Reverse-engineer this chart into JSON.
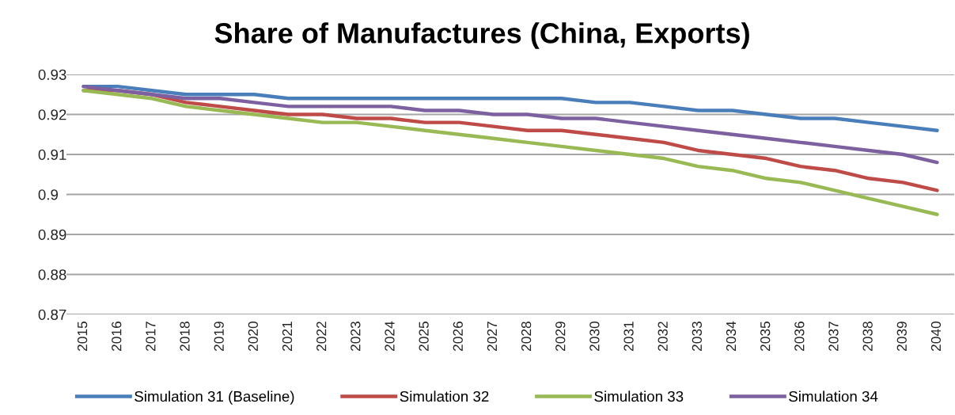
{
  "chart_data": {
    "type": "line",
    "title": "Share of Manufactures (China, Exports)",
    "categories": [
      "2015",
      "2016",
      "2017",
      "2018",
      "2019",
      "2020",
      "2021",
      "2022",
      "2023",
      "2024",
      "2025",
      "2026",
      "2027",
      "2028",
      "2029",
      "2030",
      "2031",
      "2032",
      "2033",
      "2034",
      "2035",
      "2036",
      "2037",
      "2038",
      "2039",
      "2040"
    ],
    "series": [
      {
        "name": "Simulation 31 (Baseline)",
        "color": "#4a7ebb",
        "values": [
          0.927,
          0.927,
          0.926,
          0.925,
          0.925,
          0.925,
          0.924,
          0.924,
          0.924,
          0.924,
          0.924,
          0.924,
          0.924,
          0.924,
          0.924,
          0.923,
          0.923,
          0.922,
          0.921,
          0.921,
          0.92,
          0.919,
          0.919,
          0.918,
          0.917,
          0.916
        ]
      },
      {
        "name": "Simulation 32",
        "color": "#be4b48",
        "values": [
          0.926,
          0.926,
          0.925,
          0.923,
          0.922,
          0.921,
          0.92,
          0.92,
          0.919,
          0.919,
          0.918,
          0.918,
          0.917,
          0.916,
          0.916,
          0.915,
          0.914,
          0.913,
          0.911,
          0.91,
          0.909,
          0.907,
          0.906,
          0.904,
          0.903,
          0.901
        ]
      },
      {
        "name": "Simulation 33",
        "color": "#98b954",
        "values": [
          0.926,
          0.925,
          0.924,
          0.922,
          0.921,
          0.92,
          0.919,
          0.918,
          0.918,
          0.917,
          0.916,
          0.915,
          0.914,
          0.913,
          0.912,
          0.911,
          0.91,
          0.909,
          0.907,
          0.906,
          0.904,
          0.903,
          0.901,
          0.899,
          0.897,
          0.895
        ]
      },
      {
        "name": "Simulation 34",
        "color": "#7d60a0",
        "values": [
          0.927,
          0.926,
          0.925,
          0.924,
          0.924,
          0.923,
          0.922,
          0.922,
          0.922,
          0.922,
          0.921,
          0.921,
          0.92,
          0.92,
          0.919,
          0.919,
          0.918,
          0.917,
          0.916,
          0.915,
          0.914,
          0.913,
          0.912,
          0.911,
          0.91,
          0.908
        ]
      }
    ],
    "ylim": [
      0.87,
      0.93
    ],
    "yticks": [
      0.87,
      0.88,
      0.89,
      0.9,
      0.91,
      0.92,
      0.93
    ],
    "grid": "y",
    "legend": "bottom"
  }
}
